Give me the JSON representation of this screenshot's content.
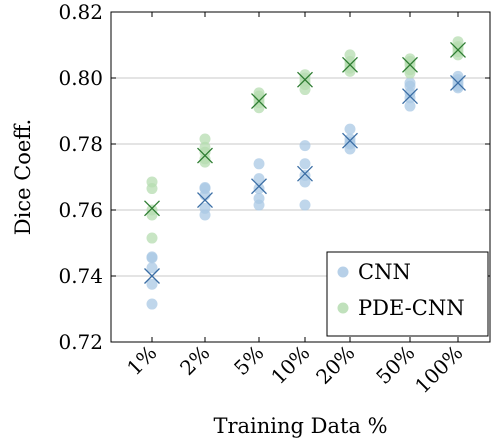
{
  "chart_data": {
    "type": "scatter",
    "title": "",
    "xlabel": "Training Data %",
    "ylabel": "Dice Coeff.",
    "categories": [
      "1%",
      "2%",
      "5%",
      "10%",
      "20%",
      "50%",
      "100%"
    ],
    "ylim": [
      0.72,
      0.82
    ],
    "yticks": [
      0.72,
      0.74,
      0.76,
      0.78,
      0.8,
      0.82
    ],
    "ytick_labels": [
      "0.72",
      "0.74",
      "0.76",
      "0.78",
      "0.80",
      "0.82"
    ],
    "grid": "horizontal",
    "legend_position": "bottom-right",
    "series": [
      {
        "name": "CNN",
        "color": "#aac8e4",
        "mean_color": "#3b6ea5",
        "runs": [
          [
            0.7315,
            0.7375,
            0.7425,
            0.7455,
            0.7458
          ],
          [
            0.7585,
            0.7605,
            0.7645,
            0.7665,
            0.7668
          ],
          [
            0.7615,
            0.7635,
            0.7665,
            0.7695,
            0.774
          ],
          [
            0.7615,
            0.7685,
            0.7705,
            0.774,
            0.7795
          ],
          [
            0.7785,
            0.78,
            0.7805,
            0.7815,
            0.7845
          ],
          [
            0.7915,
            0.794,
            0.7955,
            0.7975,
            0.7985
          ],
          [
            0.797,
            0.7975,
            0.7985,
            0.7995,
            0.8005
          ]
        ],
        "means": [
          0.74,
          0.763,
          0.7672,
          0.771,
          0.781,
          0.7945,
          0.7985
        ]
      },
      {
        "name": "PDE-CNN",
        "color": "#b5dcb0",
        "mean_color": "#2e7d32",
        "runs": [
          [
            0.7515,
            0.7585,
            0.76,
            0.7665,
            0.7685
          ],
          [
            0.7745,
            0.7755,
            0.7775,
            0.779,
            0.7815
          ],
          [
            0.791,
            0.7925,
            0.7935,
            0.7945,
            0.7955
          ],
          [
            0.7965,
            0.798,
            0.799,
            0.8,
            0.801
          ],
          [
            0.802,
            0.803,
            0.804,
            0.805,
            0.807
          ],
          [
            0.8015,
            0.8025,
            0.804,
            0.805,
            0.8058
          ],
          [
            0.807,
            0.808,
            0.809,
            0.8095,
            0.811
          ]
        ],
        "means": [
          0.7605,
          0.7765,
          0.793,
          0.7995,
          0.804,
          0.804,
          0.8085
        ]
      }
    ]
  }
}
